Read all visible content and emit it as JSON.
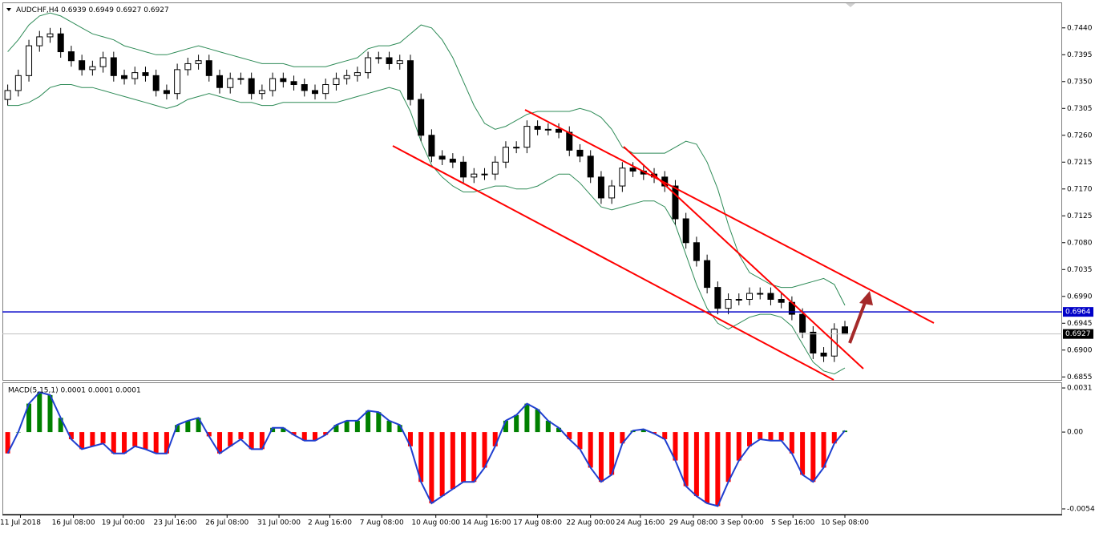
{
  "chart_data": [
    {
      "type": "candlestick",
      "title": "AUDCHF,H4",
      "xlim": [
        -0.5,
        99.5
      ],
      "xticks": [
        {
          "value": 1.2,
          "label": "11 Jul 2018"
        },
        {
          "value": 6.2,
          "label": "16 Jul 08:00"
        },
        {
          "value": 10.9,
          "label": "19 Jul 00:00"
        },
        {
          "value": 15.8,
          "label": "23 Jul 16:00"
        },
        {
          "value": 20.7,
          "label": "26 Jul 08:00"
        },
        {
          "value": 25.6,
          "label": "31 Jul 00:00"
        },
        {
          "value": 30.4,
          "label": "2 Aug 16:00"
        },
        {
          "value": 35.3,
          "label": "7 Aug 08:00"
        },
        {
          "value": 40.4,
          "label": "10 Aug 00:00"
        },
        {
          "value": 45.2,
          "label": "14 Aug 16:00"
        },
        {
          "value": 50.0,
          "label": "17 Aug 08:00"
        },
        {
          "value": 55.0,
          "label": "22 Aug 00:00"
        },
        {
          "value": 59.7,
          "label": "24 Aug 16:00"
        },
        {
          "value": 64.7,
          "label": "29 Aug 08:00"
        },
        {
          "value": 69.3,
          "label": "3 Sep 00:00"
        },
        {
          "value": 74.1,
          "label": "5 Sep 16:00"
        },
        {
          "value": 79.0,
          "label": "10 Sep 08:00"
        }
      ],
      "ylim": [
        0.685,
        0.748
      ],
      "yticks": [
        {
          "value": 0.744,
          "label": "0.7440"
        },
        {
          "value": 0.7395,
          "label": "0.7395"
        },
        {
          "value": 0.735,
          "label": "0.7350"
        },
        {
          "value": 0.7305,
          "label": "0.7305"
        },
        {
          "value": 0.726,
          "label": "0.7260"
        },
        {
          "value": 0.7215,
          "label": "0.7215"
        },
        {
          "value": 0.717,
          "label": "0.7170"
        },
        {
          "value": 0.7125,
          "label": "0.7125"
        },
        {
          "value": 0.708,
          "label": "0.7080"
        },
        {
          "value": 0.7035,
          "label": "0.7035"
        },
        {
          "value": 0.699,
          "label": "0.6990"
        },
        {
          "value": 0.6945,
          "label": "0.6945"
        },
        {
          "value": 0.69,
          "label": "0.6900"
        },
        {
          "value": 0.6855,
          "label": "0.6855"
        }
      ],
      "up_color": "#ffffff",
      "down_color": "#000000",
      "band_color": "#2e8b57",
      "level": 0.6964,
      "level_color": "#0000c8",
      "open": [
        0.732,
        0.7335,
        0.736,
        0.741,
        0.7425,
        0.743,
        0.74,
        0.7385,
        0.737,
        0.7375,
        0.739,
        0.736,
        0.7355,
        0.7365,
        0.736,
        0.7335,
        0.733,
        0.737,
        0.738,
        0.7385,
        0.736,
        0.734,
        0.7355,
        0.7355,
        0.733,
        0.7335,
        0.7355,
        0.735,
        0.7345,
        0.7335,
        0.733,
        0.7345,
        0.7355,
        0.736,
        0.7365,
        0.739,
        0.739,
        0.738,
        0.7385,
        0.732,
        0.726,
        0.7225,
        0.722,
        0.7215,
        0.719,
        0.7195,
        0.7195,
        0.7215,
        0.724,
        0.724,
        0.7275,
        0.727,
        0.727,
        0.7265,
        0.7235,
        0.7225,
        0.719,
        0.7155,
        0.7175,
        0.7205,
        0.72,
        0.7195,
        0.719,
        0.7175,
        0.712,
        0.708,
        0.705,
        0.7005,
        0.697,
        0.6985,
        0.6985,
        0.6995,
        0.6995,
        0.6985,
        0.698,
        0.696,
        0.693,
        0.6895,
        0.689,
        0.6939
      ],
      "high": [
        0.7345,
        0.737,
        0.742,
        0.7435,
        0.744,
        0.744,
        0.741,
        0.7395,
        0.7385,
        0.74,
        0.74,
        0.737,
        0.7375,
        0.7375,
        0.737,
        0.7345,
        0.738,
        0.739,
        0.7395,
        0.7395,
        0.737,
        0.7365,
        0.7365,
        0.7365,
        0.7345,
        0.7365,
        0.7365,
        0.736,
        0.7355,
        0.7345,
        0.7355,
        0.7365,
        0.737,
        0.7375,
        0.74,
        0.74,
        0.74,
        0.7395,
        0.7395,
        0.733,
        0.727,
        0.7235,
        0.723,
        0.7225,
        0.7205,
        0.7205,
        0.7225,
        0.725,
        0.725,
        0.7285,
        0.7285,
        0.728,
        0.728,
        0.7275,
        0.7245,
        0.7235,
        0.72,
        0.7185,
        0.7215,
        0.7215,
        0.721,
        0.7205,
        0.72,
        0.7185,
        0.713,
        0.709,
        0.706,
        0.7015,
        0.6995,
        0.6995,
        0.7005,
        0.7005,
        0.7005,
        0.6995,
        0.699,
        0.697,
        0.694,
        0.6905,
        0.6945,
        0.6949
      ],
      "low": [
        0.731,
        0.7325,
        0.735,
        0.74,
        0.7415,
        0.739,
        0.7375,
        0.736,
        0.736,
        0.7365,
        0.735,
        0.7345,
        0.7345,
        0.735,
        0.7325,
        0.732,
        0.732,
        0.736,
        0.737,
        0.735,
        0.733,
        0.733,
        0.7345,
        0.732,
        0.732,
        0.7325,
        0.734,
        0.7335,
        0.7325,
        0.732,
        0.732,
        0.7335,
        0.7345,
        0.735,
        0.7355,
        0.738,
        0.737,
        0.737,
        0.731,
        0.725,
        0.7215,
        0.721,
        0.7205,
        0.718,
        0.718,
        0.7185,
        0.7185,
        0.7205,
        0.723,
        0.723,
        0.726,
        0.726,
        0.7255,
        0.7225,
        0.7215,
        0.718,
        0.7145,
        0.7145,
        0.7165,
        0.719,
        0.7185,
        0.718,
        0.7165,
        0.711,
        0.707,
        0.704,
        0.6995,
        0.696,
        0.696,
        0.6975,
        0.6975,
        0.6985,
        0.6975,
        0.697,
        0.695,
        0.692,
        0.6885,
        0.688,
        0.688,
        0.6927
      ],
      "close": [
        0.7335,
        0.736,
        0.741,
        0.7425,
        0.743,
        0.74,
        0.7385,
        0.737,
        0.7375,
        0.739,
        0.736,
        0.7355,
        0.7365,
        0.736,
        0.7335,
        0.733,
        0.737,
        0.738,
        0.7385,
        0.736,
        0.734,
        0.7355,
        0.7355,
        0.733,
        0.7335,
        0.7355,
        0.735,
        0.7345,
        0.7335,
        0.733,
        0.7345,
        0.7355,
        0.736,
        0.7365,
        0.739,
        0.739,
        0.738,
        0.7385,
        0.732,
        0.726,
        0.7225,
        0.722,
        0.7215,
        0.719,
        0.7195,
        0.7195,
        0.7215,
        0.724,
        0.724,
        0.7275,
        0.727,
        0.727,
        0.7265,
        0.7235,
        0.7225,
        0.719,
        0.7155,
        0.7175,
        0.7205,
        0.72,
        0.7195,
        0.719,
        0.7175,
        0.712,
        0.708,
        0.705,
        0.7005,
        0.697,
        0.6985,
        0.6985,
        0.6995,
        0.6995,
        0.6985,
        0.698,
        0.696,
        0.693,
        0.6895,
        0.689,
        0.6935,
        0.6927
      ],
      "band_upper": [
        0.74,
        0.742,
        0.7445,
        0.746,
        0.7465,
        0.746,
        0.745,
        0.744,
        0.743,
        0.7425,
        0.742,
        0.741,
        0.7405,
        0.74,
        0.7395,
        0.7395,
        0.74,
        0.7405,
        0.741,
        0.7405,
        0.74,
        0.7395,
        0.739,
        0.7385,
        0.738,
        0.738,
        0.738,
        0.7375,
        0.7375,
        0.7375,
        0.7375,
        0.738,
        0.7385,
        0.739,
        0.7405,
        0.741,
        0.741,
        0.7415,
        0.743,
        0.7445,
        0.744,
        0.742,
        0.739,
        0.735,
        0.731,
        0.728,
        0.727,
        0.7275,
        0.7285,
        0.7295,
        0.73,
        0.73,
        0.73,
        0.73,
        0.7305,
        0.73,
        0.729,
        0.727,
        0.724,
        0.723,
        0.723,
        0.723,
        0.723,
        0.724,
        0.725,
        0.7245,
        0.7215,
        0.717,
        0.711,
        0.706,
        0.703,
        0.702,
        0.701,
        0.7005,
        0.7005,
        0.701,
        0.7015,
        0.702,
        0.701,
        0.6975
      ],
      "band_lower": [
        0.731,
        0.731,
        0.7315,
        0.7325,
        0.734,
        0.7345,
        0.7345,
        0.734,
        0.734,
        0.7335,
        0.733,
        0.7325,
        0.732,
        0.7315,
        0.731,
        0.7305,
        0.731,
        0.732,
        0.7325,
        0.733,
        0.7325,
        0.732,
        0.7315,
        0.7315,
        0.731,
        0.731,
        0.7315,
        0.7315,
        0.7315,
        0.7315,
        0.7315,
        0.7315,
        0.732,
        0.7325,
        0.733,
        0.7335,
        0.734,
        0.7335,
        0.73,
        0.725,
        0.721,
        0.719,
        0.7175,
        0.7165,
        0.7165,
        0.717,
        0.7175,
        0.7175,
        0.717,
        0.717,
        0.7175,
        0.7185,
        0.7195,
        0.7195,
        0.718,
        0.716,
        0.714,
        0.7135,
        0.714,
        0.7145,
        0.715,
        0.715,
        0.714,
        0.711,
        0.706,
        0.701,
        0.697,
        0.6945,
        0.6935,
        0.6945,
        0.6955,
        0.696,
        0.696,
        0.6955,
        0.694,
        0.691,
        0.688,
        0.6865,
        0.686,
        0.687
      ]
    },
    {
      "type": "bar",
      "title": "MACD(5,15,1) 0.0001 0.0001 0.0001",
      "ylim": [
        -0.00574,
        0.00344
      ],
      "yticks": [
        0.0031,
        {
          "value": 0,
          "label": "0.00"
        },
        -0.0054
      ],
      "pos_color": "#008000",
      "neg_color": "#ff0000",
      "line_color": "#1f3fd0",
      "values": [
        -0.0015,
        0.0,
        0.002,
        0.0028,
        0.0026,
        0.001,
        -0.0005,
        -0.0012,
        -0.001,
        -0.0008,
        -0.0015,
        -0.0015,
        -0.001,
        -0.0012,
        -0.0015,
        -0.0015,
        0.0005,
        0.0008,
        0.001,
        -0.0003,
        -0.0015,
        -0.001,
        -0.0005,
        -0.0012,
        -0.0012,
        0.0003,
        0.0003,
        -0.0002,
        -0.0006,
        -0.0006,
        -0.0002,
        0.0005,
        0.0008,
        0.0008,
        0.0015,
        0.0014,
        0.0008,
        0.0005,
        -0.001,
        -0.0035,
        -0.005,
        -0.0045,
        -0.004,
        -0.0035,
        -0.0035,
        -0.0025,
        -0.001,
        0.0008,
        0.0012,
        0.002,
        0.0016,
        0.0008,
        0.0003,
        -0.0005,
        -0.0012,
        -0.0025,
        -0.0035,
        -0.003,
        -0.0008,
        0.0001,
        0.0002,
        -0.0001,
        -0.0005,
        -0.002,
        -0.0038,
        -0.0045,
        -0.005,
        -0.0052,
        -0.0035,
        -0.002,
        -0.001,
        -0.0005,
        -0.0006,
        -0.0006,
        -0.0015,
        -0.003,
        -0.0035,
        -0.0025,
        -0.0008,
        0.0001
      ]
    }
  ]
}
